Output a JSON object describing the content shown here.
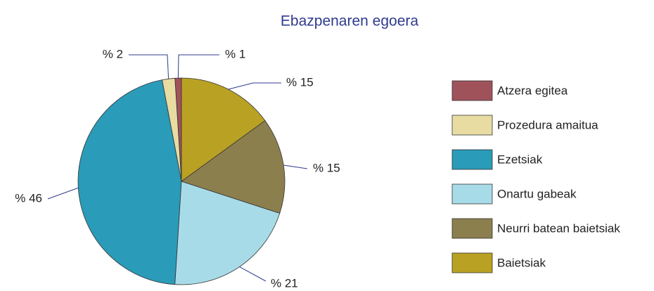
{
  "chart_data": {
    "type": "pie",
    "title": "Ebazpenaren egoera",
    "categories": [
      "Atzera egitea",
      "Prozedura amaitua",
      "Ezetsiak",
      "Onartu gabeak",
      "Neurri batean baietsiak",
      "Baietsiak"
    ],
    "values": [
      1,
      2,
      46,
      21,
      15,
      15
    ],
    "value_labels": [
      "% 1",
      "% 2",
      "% 46",
      "% 21",
      "% 15",
      "% 15"
    ],
    "colors": [
      "#a0525a",
      "#e8dca3",
      "#2a9bb8",
      "#a8dbe8",
      "#8c7f4e",
      "#b9a124"
    ],
    "legend": "right"
  }
}
